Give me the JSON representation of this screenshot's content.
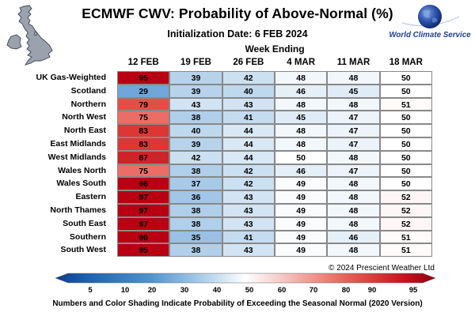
{
  "header": {
    "title": "ECMWF CWV: Probability of Above-Normal (%)",
    "subtitle": "Initialization Date: 6 FEB 2024",
    "logo_text": "World Climate Service"
  },
  "chart_data": {
    "type": "table",
    "column_group_label": "Week Ending",
    "columns": [
      "12 FEB",
      "19 FEB",
      "26 FEB",
      "4 MAR",
      "11 MAR",
      "18 MAR"
    ],
    "rows": [
      {
        "label": "UK Gas-Weighted",
        "values": [
          95,
          39,
          42,
          48,
          48,
          50
        ]
      },
      {
        "label": "Scotland",
        "values": [
          29,
          39,
          40,
          46,
          45,
          50
        ]
      },
      {
        "label": "Northern",
        "values": [
          79,
          43,
          43,
          48,
          48,
          51
        ]
      },
      {
        "label": "North West",
        "values": [
          75,
          38,
          41,
          45,
          47,
          50
        ]
      },
      {
        "label": "North East",
        "values": [
          83,
          40,
          44,
          48,
          47,
          50
        ]
      },
      {
        "label": "East Midlands",
        "values": [
          83,
          39,
          44,
          48,
          47,
          50
        ]
      },
      {
        "label": "West Midlands",
        "values": [
          87,
          42,
          44,
          50,
          48,
          50
        ]
      },
      {
        "label": "Wales North",
        "values": [
          75,
          38,
          42,
          46,
          47,
          50
        ]
      },
      {
        "label": "Wales South",
        "values": [
          96,
          37,
          42,
          49,
          48,
          50
        ]
      },
      {
        "label": "Eastern",
        "values": [
          97,
          36,
          43,
          49,
          48,
          52
        ]
      },
      {
        "label": "North Thames",
        "values": [
          97,
          38,
          43,
          49,
          48,
          52
        ]
      },
      {
        "label": "South East",
        "values": [
          97,
          38,
          43,
          49,
          48,
          52
        ]
      },
      {
        "label": "Southern",
        "values": [
          96,
          35,
          41,
          49,
          46,
          51
        ]
      },
      {
        "label": "South West",
        "values": [
          95,
          38,
          43,
          49,
          48,
          51
        ]
      }
    ],
    "colorbar": {
      "ticks": [
        5,
        10,
        20,
        30,
        40,
        50,
        60,
        70,
        80,
        90,
        95
      ],
      "low_color": "#1c5fb0",
      "mid_color": "#ffffff",
      "high_color": "#b80012"
    }
  },
  "copyright": "© 2024  Prescient Weather Ltd",
  "footnote": "Numbers and Color Shading Indicate Probability of Exceeding the Seasonal Normal (2020 Version)"
}
